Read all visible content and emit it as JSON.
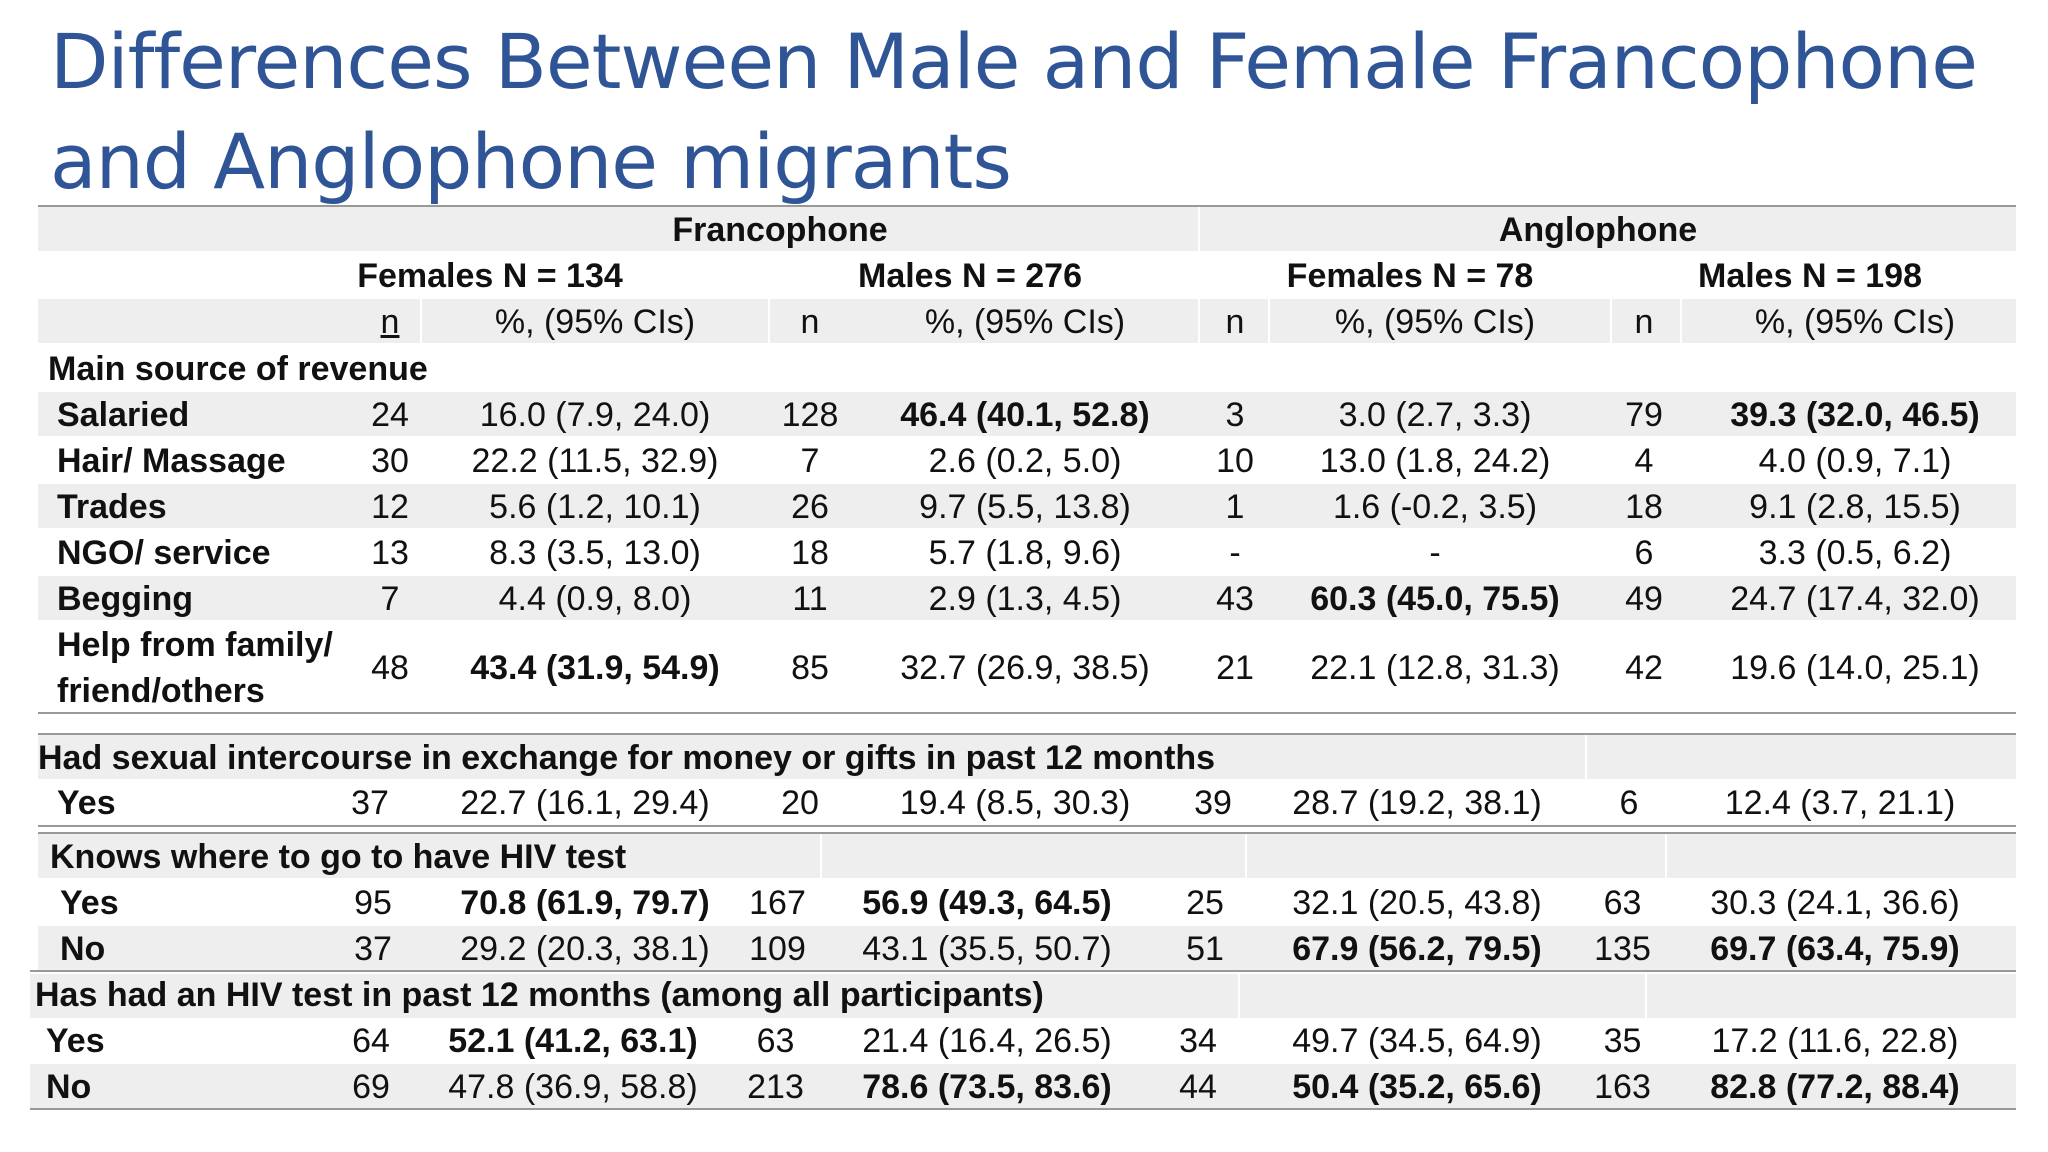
{
  "title": "Differences Between Male and Female Francophone and Anglophone migrants",
  "groups": {
    "francophone": "Francophone",
    "anglophone": "Anglophone"
  },
  "subgroups": {
    "fr_females": "Females N = 134",
    "fr_males": "Males N = 276",
    "an_females": "Females N = 78",
    "an_males": "Males N = 198"
  },
  "col_headers": {
    "n": "n",
    "pct": "%, (95% CIs)"
  },
  "sections": {
    "revenue": {
      "label": "Main source of revenue",
      "rows": [
        {
          "label": "Salaried",
          "cells": [
            "24",
            "16.0 (7.9, 24.0)",
            "128",
            "46.4 (40.1, 52.8)",
            "3",
            "3.0 (2.7, 3.3)",
            "79",
            "39.3 (32.0, 46.5)"
          ]
        },
        {
          "label": "Hair/ Massage",
          "cells": [
            "30",
            "22.2 (11.5, 32.9)",
            "7",
            "2.6 (0.2, 5.0)",
            "10",
            "13.0 (1.8, 24.2)",
            "4",
            "4.0 (0.9, 7.1)"
          ]
        },
        {
          "label": "Trades",
          "cells": [
            "12",
            "5.6 (1.2, 10.1)",
            "26",
            "9.7 (5.5, 13.8)",
            "1",
            "1.6 (-0.2, 3.5)",
            "18",
            "9.1 (2.8, 15.5)"
          ]
        },
        {
          "label": "NGO/ service",
          "cells": [
            "13",
            "8.3 (3.5, 13.0)",
            "18",
            "5.7 (1.8, 9.6)",
            "-",
            "-",
            "6",
            "3.3 (0.5, 6.2)"
          ]
        },
        {
          "label": "Begging",
          "cells": [
            "7",
            "4.4 (0.9, 8.0)",
            "11",
            "2.9 (1.3, 4.5)",
            "43",
            "60.3 (45.0, 75.5)",
            "49",
            "24.7 (17.4, 32.0)"
          ]
        },
        {
          "label_line1": "Help from family/",
          "label_line2": "friend/others",
          "cells": [
            "48",
            "43.4 (31.9, 54.9)",
            "85",
            "32.7 (26.9, 38.5)",
            "21",
            "22.1 (12.8, 31.3)",
            "42",
            "19.6 (14.0, 25.1)"
          ]
        }
      ]
    },
    "sex_exchange": {
      "label": "Had sexual intercourse in exchange for money or gifts in past 12 months",
      "rows": [
        {
          "label": "Yes",
          "cells": [
            "37",
            "22.7 (16.1, 29.4)",
            "20",
            "19.4 (8.5, 30.3)",
            "39",
            "28.7 (19.2, 38.1)",
            "6",
            "12.4 (3.7, 21.1)"
          ]
        }
      ]
    },
    "knows_hiv": {
      "label": "Knows where to go to have HIV test",
      "rows": [
        {
          "label": "Yes",
          "cells": [
            "95",
            "70.8 (61.9, 79.7)",
            "167",
            "56.9 (49.3, 64.5)",
            "25",
            "32.1 (20.5, 43.8)",
            "63",
            "30.3 (24.1, 36.6)"
          ]
        },
        {
          "label": "No",
          "cells": [
            "37",
            "29.2 (20.3, 38.1)",
            "109",
            "43.1 (35.5, 50.7)",
            "51",
            "67.9 (56.2, 79.5)",
            "135",
            "69.7 (63.4, 75.9)"
          ]
        }
      ]
    },
    "hiv_test": {
      "label": "Has had an HIV test in past 12 months (among all participants)",
      "rows": [
        {
          "label": "Yes",
          "cells": [
            "64",
            "52.1 (41.2, 63.1)",
            "63",
            "21.4 (16.4, 26.5)",
            "34",
            "49.7 (34.5, 64.9)",
            "35",
            "17.2 (11.6, 22.8)"
          ]
        },
        {
          "label": "No",
          "cells": [
            "69",
            "47.8 (36.9, 58.8)",
            "213",
            "78.6 (73.5, 83.6)",
            "44",
            "50.4 (35.2, 65.6)",
            "163",
            "82.8 (77.2, 88.4)"
          ]
        }
      ]
    }
  }
}
